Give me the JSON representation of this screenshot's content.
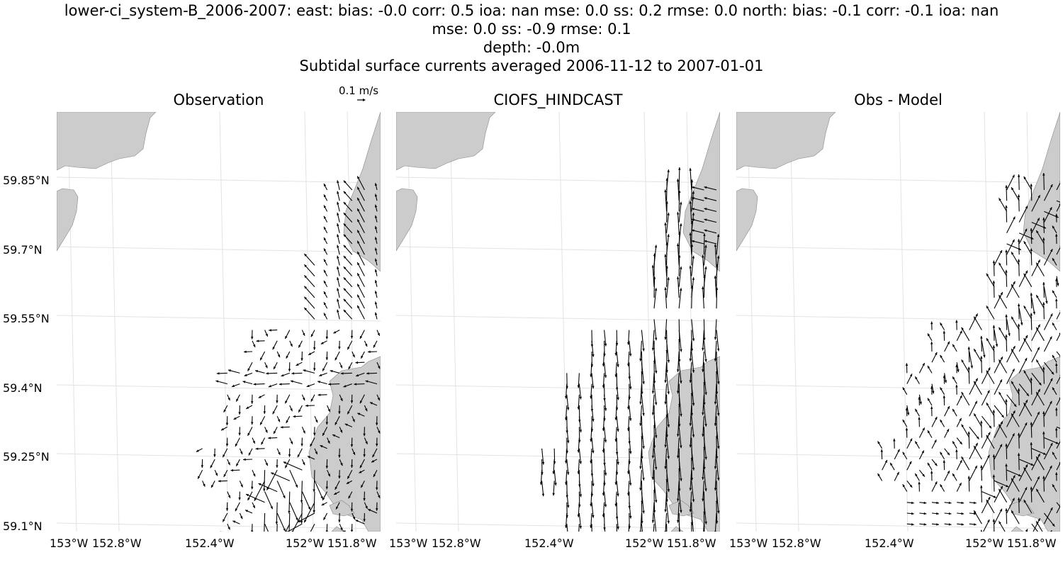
{
  "header": {
    "title_line1": "lower-ci_system-B_2006-2007: east: bias: -0.0  corr: 0.5  ioa: nan  mse: 0.0  ss: 0.2  rmse: 0.0  north: bias: -0.1  corr: -0.1  ioa: nan",
    "title_line2": "mse: 0.0  ss: -0.9  rmse: 0.1",
    "title_line3": "depth: -0.0m",
    "title_line4": "Subtidal surface currents averaged 2006-11-12 to 2007-01-01"
  },
  "quiver_key": {
    "label": "0.1 m/s",
    "speed_ms": 0.1
  },
  "colors": {
    "land": "#cccccc",
    "coast": "#888888",
    "grid": "#e2e2e2",
    "arrow": "#000000"
  },
  "chart_data": [
    {
      "type": "quiver",
      "title": "Observation",
      "xlabel": "",
      "ylabel": "",
      "lat_ticks": [
        "59.85°N",
        "59.7°N",
        "59.55°N",
        "59.4°N",
        "59.25°N",
        "59.1°N"
      ],
      "lon_ticks": [
        "153°W",
        "152.8°W",
        "152.4°W",
        "152°W",
        "151.8°W"
      ],
      "field": "observation"
    },
    {
      "type": "quiver",
      "title": "CIOFS_HINDCAST",
      "xlabel": "",
      "ylabel": "",
      "lat_ticks": [],
      "lon_ticks": [
        "153°W",
        "152.8°W",
        "152.4°W",
        "152°W",
        "151.8°W"
      ],
      "field": "model"
    },
    {
      "type": "quiver",
      "title": "Obs - Model",
      "xlabel": "",
      "ylabel": "",
      "lat_ticks": [],
      "lon_ticks": [
        "153°W",
        "152.8°W",
        "152.4°W",
        "152°W",
        "151.8°W"
      ],
      "field": "difference"
    }
  ]
}
